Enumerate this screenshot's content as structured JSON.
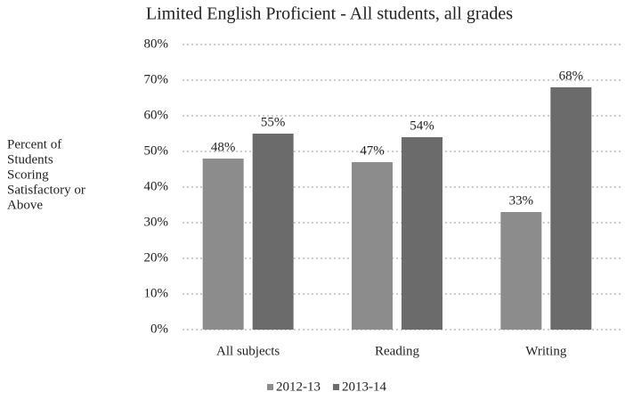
{
  "chart_data": {
    "type": "bar",
    "title": "Limited English Proficient - All students, all grades",
    "ylabel": [
      "Percent of",
      "Students",
      "Scoring",
      "Satisfactory or",
      "Above"
    ],
    "categories": [
      "All subjects",
      "Reading",
      "Writing"
    ],
    "series": [
      {
        "name": "2012-13",
        "color": "#8c8c8c",
        "values": [
          48,
          47,
          33
        ],
        "value_labels": [
          "48%",
          "47%",
          "33%"
        ]
      },
      {
        "name": "2013-14",
        "color": "#6b6b6b",
        "values": [
          55,
          54,
          68
        ],
        "value_labels": [
          "55%",
          "54%",
          "68%"
        ]
      }
    ],
    "ylim": [
      0,
      80
    ],
    "yticks": [
      {
        "value": 0,
        "label": "0%"
      },
      {
        "value": 10,
        "label": "10%"
      },
      {
        "value": 20,
        "label": "20%"
      },
      {
        "value": 30,
        "label": "30%"
      },
      {
        "value": 40,
        "label": "40%"
      },
      {
        "value": 50,
        "label": "50%"
      },
      {
        "value": 60,
        "label": "60%"
      },
      {
        "value": 70,
        "label": "70%"
      },
      {
        "value": 80,
        "label": "80%"
      }
    ],
    "grid": true,
    "legend": "bottom"
  }
}
